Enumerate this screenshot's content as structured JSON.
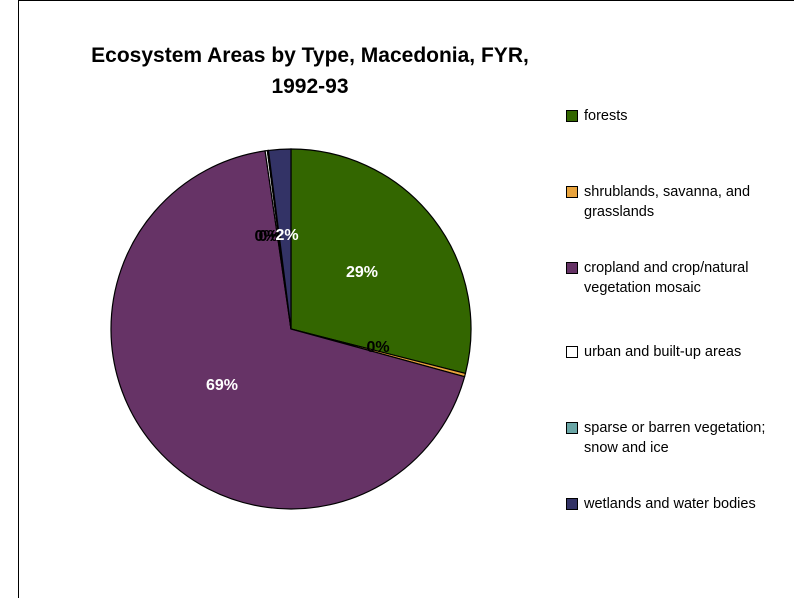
{
  "chart_data": {
    "type": "pie",
    "title": "Ecosystem Areas by Type, Macedonia, FYR, 1992-93",
    "slices": [
      {
        "name": "forests",
        "value": 29,
        "label": "29%",
        "color": "#336600"
      },
      {
        "name": "shrublands, savanna, and grasslands",
        "value": 0.3,
        "label": "0%",
        "color": "#e8a33d"
      },
      {
        "name": "cropland and crop/natural vegetation mosaic",
        "value": 68.5,
        "label": "69%",
        "color": "#663366"
      },
      {
        "name": "urban and built-up areas",
        "value": 0.2,
        "label": "0%",
        "color": "#ffffff"
      },
      {
        "name": "sparse or barren vegetation; snow and ice",
        "value": 0.1,
        "label": "0%",
        "color": "#6aa6a6"
      },
      {
        "name": "wetlands and water bodies",
        "value": 2,
        "label": "2%",
        "color": "#333366"
      }
    ],
    "legend_position": "right"
  }
}
